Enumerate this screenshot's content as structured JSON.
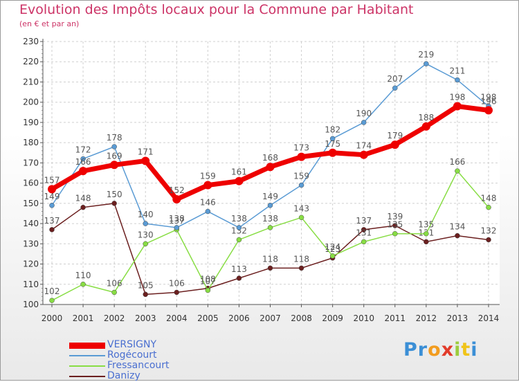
{
  "header": {
    "title": "Evolution des Impôts locaux pour la Commune par Habitant",
    "subtitle": "(en € et par an)"
  },
  "chart_data": {
    "type": "line",
    "title": "Evolution des Impôts locaux pour la Commune par Habitant",
    "subtitle": "(en € et par an)",
    "x": [
      "2000",
      "2001",
      "2002",
      "2003",
      "2004",
      "2005",
      "2006",
      "2007",
      "2008",
      "2009",
      "2010",
      "2011",
      "2012",
      "2013",
      "2014"
    ],
    "ylim": [
      100,
      230
    ],
    "yticks": [
      100,
      110,
      120,
      130,
      140,
      150,
      160,
      170,
      180,
      190,
      200,
      210,
      220,
      230
    ],
    "grid": true,
    "legend_position": "bottom-left",
    "series": [
      {
        "name": "VERSIGNY",
        "color": "#ee0000",
        "values": [
          157,
          166,
          169,
          171,
          152,
          159,
          161,
          168,
          173,
          175,
          174,
          179,
          188,
          198,
          196
        ]
      },
      {
        "name": "Rogécourt",
        "color": "#5a9bd4",
        "values": [
          149,
          172,
          178,
          140,
          138,
          146,
          138,
          149,
          159,
          182,
          190,
          207,
          219,
          211,
          198
        ]
      },
      {
        "name": "Fressancourt",
        "color": "#88dd44",
        "values": [
          102,
          110,
          106,
          130,
          137,
          107,
          132,
          138,
          143,
          124,
          131,
          135,
          135,
          166,
          148
        ]
      },
      {
        "name": "Danizy",
        "color": "#6b1f1f",
        "values": [
          137,
          148,
          150,
          105,
          106,
          108,
          113,
          118,
          118,
          123,
          137,
          139,
          131,
          134,
          132
        ]
      }
    ]
  },
  "logo": {
    "letters": [
      "P",
      "r",
      "o",
      "x",
      "i",
      "t",
      "i"
    ],
    "colors": [
      "#3b8fd6",
      "#3b8fd6",
      "#f29c1f",
      "#e23b2a",
      "#9ccc3d",
      "#f0c419",
      "#3b8fd6"
    ]
  }
}
